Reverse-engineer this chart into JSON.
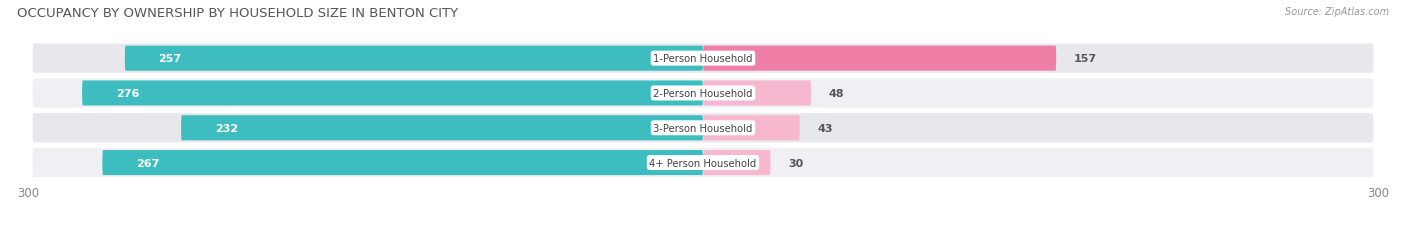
{
  "title": "OCCUPANCY BY OWNERSHIP BY HOUSEHOLD SIZE IN BENTON CITY",
  "source": "Source: ZipAtlas.com",
  "categories": [
    "1-Person Household",
    "2-Person Household",
    "3-Person Household",
    "4+ Person Household"
  ],
  "owner_values": [
    257,
    276,
    232,
    267
  ],
  "renter_values": [
    157,
    48,
    43,
    30
  ],
  "owner_color": "#3dbdc0",
  "renter_color": "#f07fa8",
  "renter_color_light": "#f7b8cf",
  "row_bg_color": "#e8e8ec",
  "row_bg_color2": "#f0f0f4",
  "max_value": 300,
  "title_fontsize": 9.5,
  "label_fontsize": 8,
  "value_fontsize": 8,
  "tick_fontsize": 8.5
}
